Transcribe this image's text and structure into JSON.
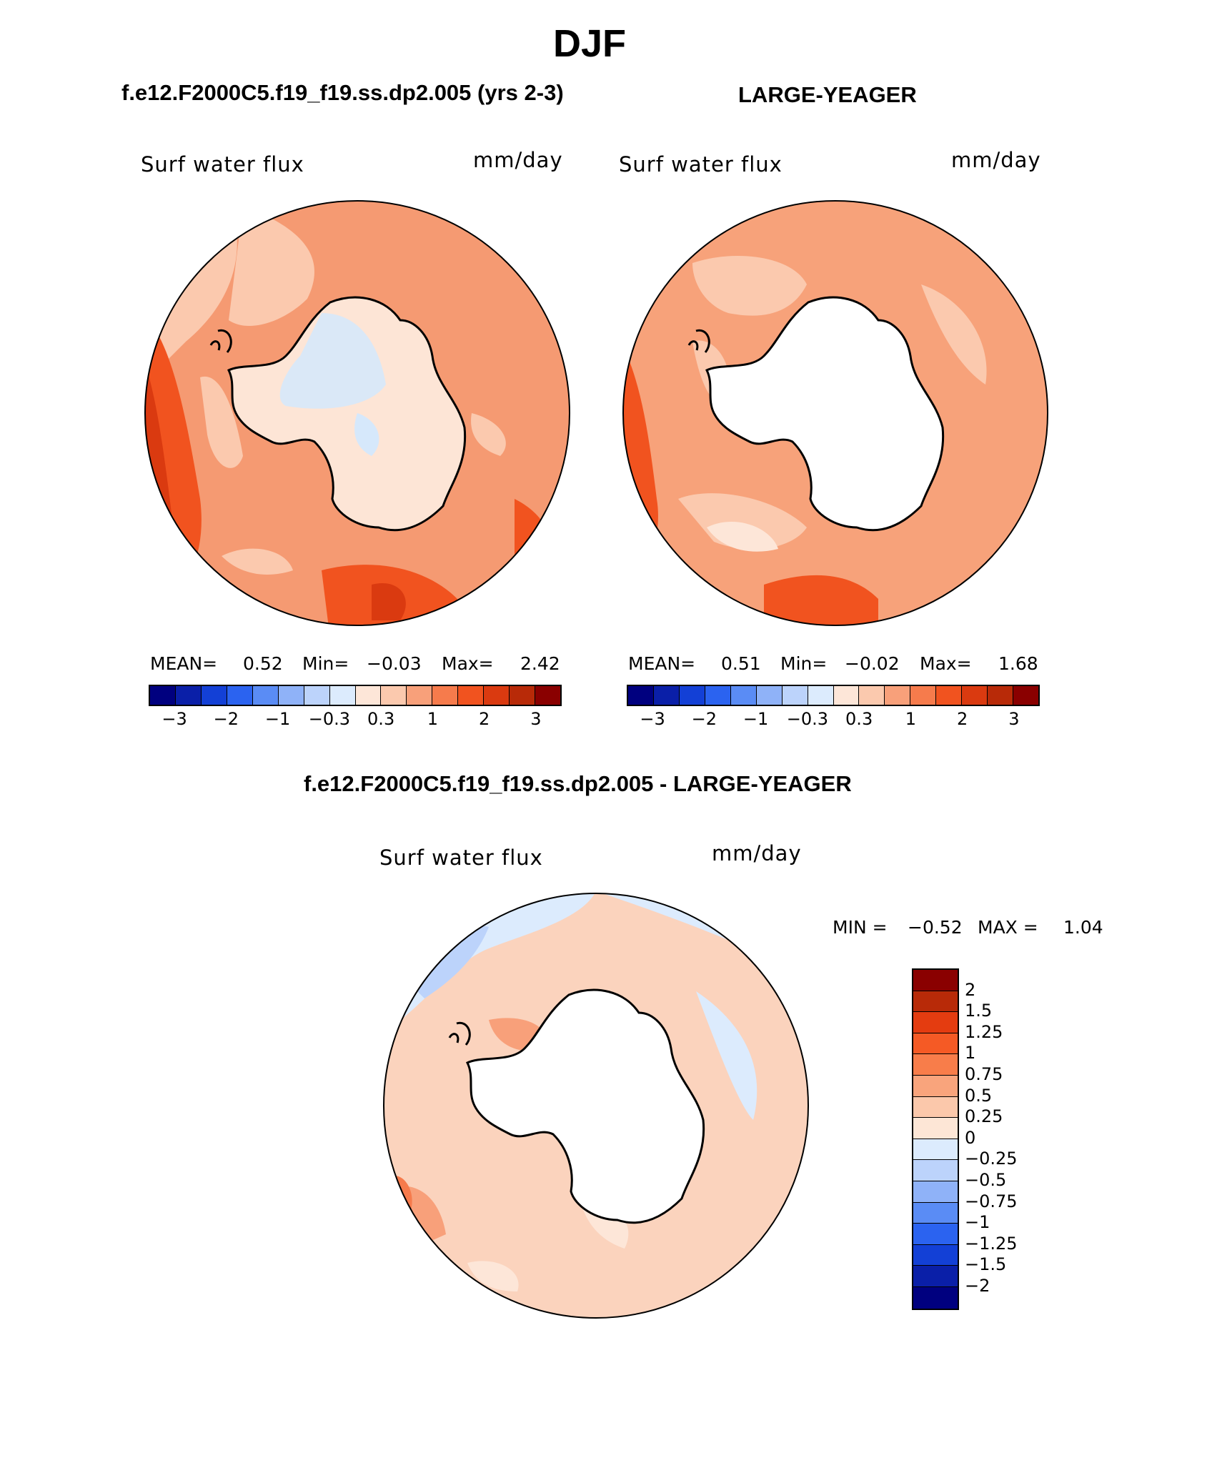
{
  "title": "DJF",
  "panels": [
    {
      "id": "case",
      "heading": "f.e12.F2000C5.f19_f19.ss.dp2.005 (yrs 2-3)",
      "variable": "Surf water flux",
      "units": "mm/day",
      "mean_label": "MEAN=",
      "mean": "0.52",
      "min_label": "Min=",
      "min": "−0.03",
      "max_label": "Max=",
      "max": "2.42",
      "ocean_color": "#f59a72",
      "land_color": "#fde5d6",
      "land_patch_color": "#d6e8fb"
    },
    {
      "id": "obs",
      "heading": "LARGE-YEAGER",
      "variable": "Surf water flux",
      "units": "mm/day",
      "mean_label": "MEAN=",
      "mean": "0.51",
      "min_label": "Min=",
      "min": "−0.02",
      "max_label": "Max=",
      "max": "1.68",
      "ocean_color": "#f7a27a",
      "land_color": "#ffffff"
    },
    {
      "id": "diff",
      "heading": "f.e12.F2000C5.f19_f19.ss.dp2.005 - LARGE-YEAGER",
      "variable": "Surf water flux",
      "units": "mm/day",
      "min_label": "MIN =",
      "min": "−0.52",
      "max_label": "MAX =",
      "max": "1.04",
      "ocean_color": "#fbd3bd",
      "land_color": "#ffffff"
    }
  ],
  "colorbar_horizontal": {
    "colors": [
      "#00007f",
      "#0a1fa8",
      "#1340d6",
      "#2b63f0",
      "#5a8cf5",
      "#8fb2f8",
      "#bcd3fb",
      "#dcebfd",
      "#fde6d8",
      "#fbc9ae",
      "#f8a07a",
      "#f67b4c",
      "#f1531f",
      "#da3a10",
      "#b82a08",
      "#8a0000"
    ],
    "tick_labels": [
      "−3",
      "−2",
      "−1",
      "−0.3",
      "0.3",
      "1",
      "2",
      "3"
    ]
  },
  "colorbar_vertical": {
    "colors": [
      "#8a0000",
      "#b82a08",
      "#e43c10",
      "#f55a25",
      "#f87d4a",
      "#f9a47c",
      "#fbc8ab",
      "#fde6d6",
      "#dcebfd",
      "#bcd3fb",
      "#8fb2f8",
      "#5a8cf5",
      "#2b63f0",
      "#1340d6",
      "#0a1fa8",
      "#00007f"
    ],
    "tick_labels": [
      "2",
      "1.5",
      "1.25",
      "1",
      "0.75",
      "0.5",
      "0.25",
      "0",
      "−0.25",
      "−0.5",
      "−0.75",
      "−1",
      "−1.25",
      "−1.5",
      "−2"
    ]
  }
}
